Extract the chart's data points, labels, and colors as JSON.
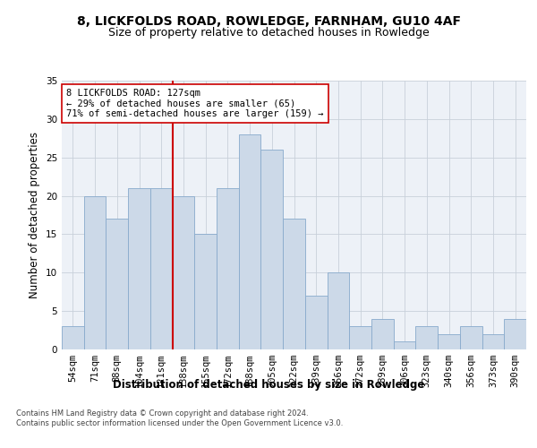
{
  "title1": "8, LICKFOLDS ROAD, ROWLEDGE, FARNHAM, GU10 4AF",
  "title2": "Size of property relative to detached houses in Rowledge",
  "xlabel": "Distribution of detached houses by size in Rowledge",
  "ylabel": "Number of detached properties",
  "bar_labels": [
    "54sqm",
    "71sqm",
    "88sqm",
    "104sqm",
    "121sqm",
    "138sqm",
    "155sqm",
    "172sqm",
    "188sqm",
    "205sqm",
    "222sqm",
    "239sqm",
    "256sqm",
    "272sqm",
    "289sqm",
    "306sqm",
    "323sqm",
    "340sqm",
    "356sqm",
    "373sqm",
    "390sqm"
  ],
  "bar_values": [
    3,
    20,
    17,
    21,
    21,
    20,
    15,
    21,
    28,
    26,
    17,
    7,
    10,
    3,
    4,
    1,
    3,
    2,
    3,
    2,
    4
  ],
  "bar_color": "#ccd9e8",
  "bar_edgecolor": "#88aacc",
  "grid_color": "#c8d0da",
  "vline_x": 4.5,
  "vline_color": "#cc0000",
  "annotation_text": "8 LICKFOLDS ROAD: 127sqm\n← 29% of detached houses are smaller (65)\n71% of semi-detached houses are larger (159) →",
  "annotation_box_color": "#ffffff",
  "annotation_box_edgecolor": "#cc0000",
  "ylim": [
    0,
    35
  ],
  "yticks": [
    0,
    5,
    10,
    15,
    20,
    25,
    30,
    35
  ],
  "footer": "Contains HM Land Registry data © Crown copyright and database right 2024.\nContains public sector information licensed under the Open Government Licence v3.0.",
  "title1_fontsize": 10,
  "title2_fontsize": 9,
  "tick_fontsize": 7.5,
  "ylabel_fontsize": 8.5,
  "xlabel_fontsize": 8.5,
  "annotation_fontsize": 7.5,
  "footer_fontsize": 6,
  "background_color": "#edf1f7"
}
